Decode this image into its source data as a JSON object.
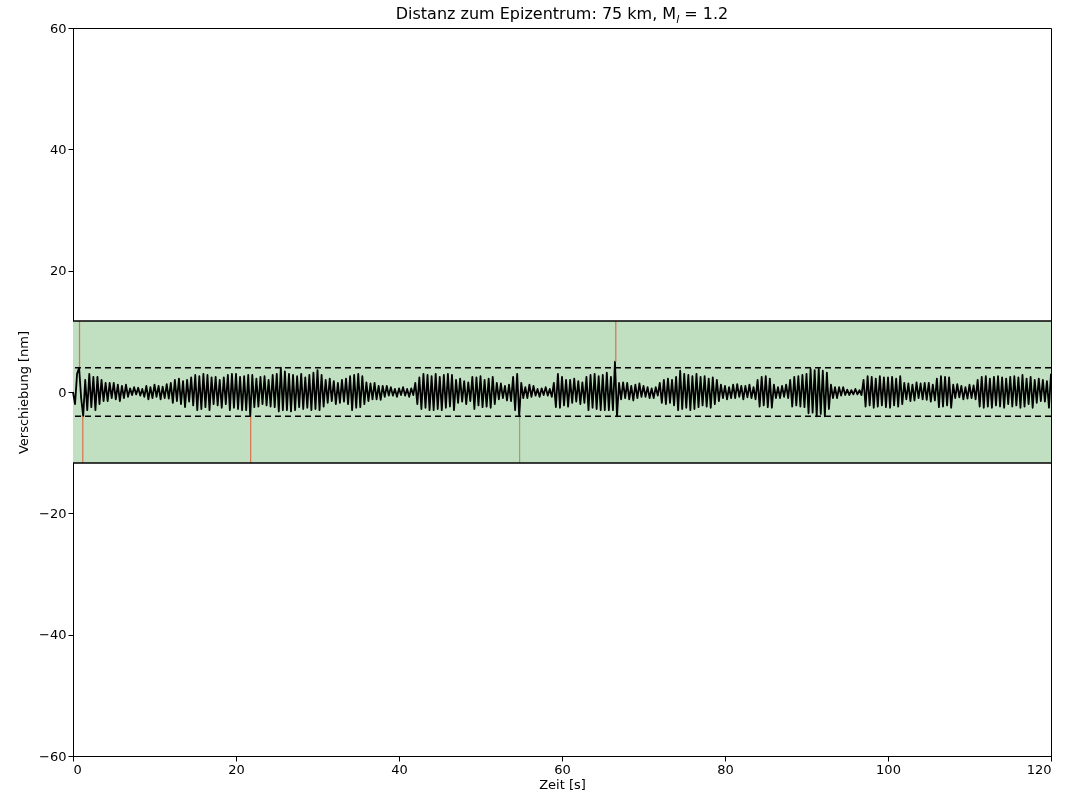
{
  "chart_data": {
    "type": "line",
    "title": "Distanz zum Epizentrum: 75 km, M$_{l}$ = 1.2",
    "xlabel": "Zeit [s]",
    "ylabel": "Verschiebung [nm]",
    "xlim": [
      0,
      120
    ],
    "xticks": [
      0,
      20,
      40,
      60,
      80,
      100,
      120
    ],
    "ylim": [
      -60,
      60
    ],
    "yticks": [
      -60,
      -40,
      -20,
      0,
      20,
      40,
      60
    ],
    "grid": false,
    "bands": [
      {
        "axis": "y",
        "from": -11.7,
        "to": 11.7,
        "color": "#c1dfc1"
      }
    ],
    "ref_lines": [
      {
        "axis": "y",
        "value": 11.7,
        "color": "#000000",
        "line_style": "solid"
      },
      {
        "axis": "y",
        "value": -11.7,
        "color": "#000000",
        "line_style": "solid"
      },
      {
        "axis": "y",
        "value": 4,
        "color": "#000000",
        "line_style": "dashed"
      },
      {
        "axis": "y",
        "value": -4,
        "color": "#000000",
        "line_style": "dashed"
      }
    ],
    "series": [
      {
        "color": "#000000",
        "x": [
          0,
          0.25,
          0.5,
          0.75,
          1,
          1.25,
          1.5,
          1.75,
          2,
          2.25,
          2.5,
          2.75,
          3,
          3.25,
          3.5,
          3.75,
          4,
          4.25,
          4.5,
          4.75,
          5,
          5.25,
          5.5,
          5.75,
          6,
          6.25,
          6.5,
          6.75,
          7,
          7.25,
          7.5,
          7.75,
          8,
          8.25,
          8.5,
          8.75,
          9,
          9.25,
          9.5,
          9.75,
          10,
          10.25,
          10.5,
          10.75,
          11,
          11.25,
          11.5,
          11.75,
          12,
          12.25,
          12.5,
          12.75,
          13,
          13.25,
          13.5,
          13.75,
          14,
          14.25,
          14.5,
          14.75,
          15,
          15.25,
          15.5,
          15.75,
          16,
          16.25,
          16.5,
          16.75,
          17,
          17.25,
          17.5,
          17.75,
          18,
          18.25,
          18.5,
          18.75,
          19,
          19.25,
          19.5,
          19.75,
          20,
          20.25,
          20.5,
          20.75,
          21,
          21.25,
          21.5,
          21.75,
          22,
          22.25,
          22.5,
          22.75,
          23,
          23.25,
          23.5,
          23.75,
          24,
          24.25,
          24.5,
          24.75,
          25,
          25.25,
          25.5,
          25.75,
          26,
          26.25,
          26.5,
          26.75,
          27,
          27.25,
          27.5,
          27.75,
          28,
          28.25,
          28.5,
          28.75,
          29,
          29.25,
          29.5,
          29.75,
          30,
          30.25,
          30.5,
          30.75,
          31,
          31.25,
          31.5,
          31.75,
          32,
          32.25,
          32.5,
          32.75,
          33,
          33.25,
          33.5,
          33.75,
          34,
          34.25,
          34.5,
          34.75,
          35,
          35.25,
          35.5,
          35.75,
          36,
          36.25,
          36.5,
          36.75,
          37,
          37.25,
          37.5,
          37.75,
          38,
          38.25,
          38.5,
          38.75,
          39,
          39.25,
          39.5,
          39.75,
          40,
          40.25,
          40.5,
          40.75,
          41,
          41.25,
          41.5,
          41.75,
          42,
          42.25,
          42.5,
          42.75,
          43,
          43.25,
          43.5,
          43.75,
          44,
          44.25,
          44.5,
          44.75,
          45,
          45.25,
          45.5,
          45.75,
          46,
          46.25,
          46.5,
          46.75,
          47,
          47.25,
          47.5,
          47.75,
          48,
          48.25,
          48.5,
          48.75,
          49,
          49.25,
          49.5,
          49.75,
          50,
          50.25,
          50.5,
          50.75,
          51,
          51.25,
          51.5,
          51.75,
          52,
          52.25,
          52.5,
          52.75,
          53,
          53.25,
          53.5,
          53.75,
          54,
          54.25,
          54.5,
          54.75,
          55,
          55.25,
          55.5,
          55.75,
          56,
          56.25,
          56.5,
          56.75,
          57,
          57.25,
          57.5,
          57.75,
          58,
          58.25,
          58.5,
          58.75,
          59,
          59.25,
          59.5,
          59.75,
          60,
          60.25,
          60.5,
          60.75,
          61,
          61.25,
          61.5,
          61.75,
          62,
          62.25,
          62.5,
          62.75,
          63,
          63.25,
          63.5,
          63.75,
          64,
          64.25,
          64.5,
          64.75,
          65,
          65.25,
          65.5,
          65.75,
          66,
          66.25,
          66.5,
          66.75,
          67,
          67.25,
          67.5,
          67.75,
          68,
          68.25,
          68.5,
          68.75,
          69,
          69.25,
          69.5,
          69.75,
          70,
          70.25,
          70.5,
          70.75,
          71,
          71.25,
          71.5,
          71.75,
          72,
          72.25,
          72.5,
          72.75,
          73,
          73.25,
          73.5,
          73.75,
          74,
          74.25,
          74.5,
          74.75,
          75,
          75.25,
          75.5,
          75.75,
          76,
          76.25,
          76.5,
          76.75,
          77,
          77.25,
          77.5,
          77.75,
          78,
          78.25,
          78.5,
          78.75,
          79,
          79.25,
          79.5,
          79.75,
          80,
          80.25,
          80.5,
          80.75,
          81,
          81.25,
          81.5,
          81.75,
          82,
          82.25,
          82.5,
          82.75,
          83,
          83.25,
          83.5,
          83.75,
          84,
          84.25,
          84.5,
          84.75,
          85,
          85.25,
          85.5,
          85.75,
          86,
          86.25,
          86.5,
          86.75,
          87,
          87.25,
          87.5,
          87.75,
          88,
          88.25,
          88.5,
          88.75,
          89,
          89.25,
          89.5,
          89.75,
          90,
          90.25,
          90.5,
          90.75,
          91,
          91.25,
          91.5,
          91.75,
          92,
          92.25,
          92.5,
          92.75,
          93,
          93.25,
          93.5,
          93.75,
          94,
          94.25,
          94.5,
          94.75,
          95,
          95.25,
          95.5,
          95.75,
          96,
          96.25,
          96.5,
          96.75,
          97,
          97.25,
          97.5,
          97.75,
          98,
          98.25,
          98.5,
          98.75,
          99,
          99.25,
          99.5,
          99.75,
          100,
          100.25,
          100.5,
          100.75,
          101,
          101.25,
          101.5,
          101.75,
          102,
          102.25,
          102.5,
          102.75,
          103,
          103.25,
          103.5,
          103.75,
          104,
          104.25,
          104.5,
          104.75,
          105,
          105.25,
          105.5,
          105.75,
          106,
          106.25,
          106.5,
          106.75,
          107,
          107.25,
          107.5,
          107.75,
          108,
          108.25,
          108.5,
          108.75,
          109,
          109.25,
          109.5,
          109.75,
          110,
          110.25,
          110.5,
          110.75,
          111,
          111.25,
          111.5,
          111.75,
          112,
          112.25,
          112.5,
          112.75,
          113,
          113.25,
          113.5,
          113.75,
          114,
          114.25,
          114.5,
          114.75,
          115,
          115.25,
          115.5,
          115.75,
          116,
          116.25,
          116.5,
          116.75,
          117,
          117.25,
          117.5,
          117.75,
          118,
          118.25,
          118.5,
          118.75,
          119,
          119.25,
          119.5,
          119.75,
          120
        ],
        "values": [
          0,
          -2,
          3,
          4,
          -1,
          -4,
          2,
          -3,
          3,
          -2.5,
          2.5,
          -3,
          2.5,
          -2,
          2,
          -1.5,
          1.5,
          -1.5,
          1.5,
          -1,
          1.5,
          -1.2,
          1.2,
          -1.5,
          1,
          -1,
          1.2,
          -0.8,
          0.6,
          -0.5,
          0.8,
          -0.4,
          0.7,
          -0.6,
          0.5,
          -0.8,
          1,
          -1.2,
          0.8,
          -1,
          1.2,
          -0.8,
          1,
          -1.2,
          0.9,
          -1,
          1.3,
          -1.1,
          1.5,
          -1.8,
          2,
          -1.5,
          2.2,
          -2,
          1.8,
          -2.5,
          2,
          -1.6,
          2.4,
          -2.2,
          2.8,
          -3,
          2.6,
          -2.8,
          3,
          -2.5,
          2.8,
          -3,
          2.4,
          -2,
          2.5,
          -2.2,
          2,
          -2.6,
          2.4,
          -2,
          2.8,
          -3,
          3,
          -2.6,
          3,
          -2.8,
          2.5,
          -3,
          2.6,
          -3,
          2.8,
          -4,
          2.8,
          -2.5,
          2.2,
          -2.4,
          2.5,
          -2,
          2.6,
          -2.2,
          2,
          -2.4,
          2.8,
          -2.5,
          3,
          -3.2,
          4,
          -3,
          3.4,
          -3,
          3,
          -3.2,
          2.8,
          -3,
          2.6,
          -2.5,
          3,
          -2.8,
          2.4,
          -2.6,
          2.8,
          -3,
          3.2,
          -2.8,
          3.6,
          -3,
          2.8,
          -2.4,
          2,
          -1.8,
          2.2,
          -1.5,
          1.8,
          -2,
          1.5,
          -1.8,
          2,
          -1.6,
          2.2,
          -2,
          2.6,
          -3,
          2.8,
          -2.6,
          3,
          -2.5,
          2.6,
          -2,
          1.6,
          -1.5,
          1.4,
          -1.2,
          1.5,
          -1.2,
          1,
          -1.3,
          1,
          -0.8,
          1,
          -0.6,
          0.8,
          -0.6,
          0.5,
          -0.8,
          0.6,
          -0.5,
          0.8,
          -0.6,
          0.5,
          -0.8,
          0.6,
          -0.5,
          1.5,
          -2,
          2.4,
          -2.8,
          3,
          -2.6,
          2.8,
          -3,
          2.6,
          -3,
          3,
          -2.8,
          2.5,
          -3,
          2.8,
          -2.6,
          3,
          -2.4,
          2.8,
          -3,
          2,
          -1.8,
          2.2,
          -1.6,
          1.8,
          -2,
          1.6,
          -1.5,
          2.5,
          -2.8,
          2.4,
          -2.2,
          2.6,
          -2.5,
          2,
          -2.4,
          2.2,
          -2.6,
          2.5,
          -2,
          1.5,
          -1.2,
          1.4,
          -1,
          1,
          -1.4,
          1.2,
          -1.5,
          2.5,
          -3,
          3,
          -4,
          1.5,
          -1,
          0.8,
          -1,
          1.2,
          -0.8,
          1,
          -0.6,
          0.5,
          -0.8,
          0.6,
          -0.5,
          0.8,
          -0.6,
          0.5,
          -0.8,
          1.5,
          -2.5,
          3,
          -2.6,
          2.5,
          -2.2,
          2,
          -2.4,
          2,
          -1.8,
          2.2,
          -1.6,
          1.8,
          -2,
          1.6,
          -1.8,
          2.5,
          -3,
          2.8,
          -2.6,
          3,
          -2.8,
          2.6,
          -3,
          2.8,
          -3,
          3.2,
          -3,
          2.5,
          -3,
          5,
          -4,
          1.5,
          -1.2,
          1.6,
          -1,
          1.5,
          -1.2,
          1,
          -1.4,
          1.2,
          -1,
          1.4,
          -0.8,
          1,
          -0.8,
          0.8,
          -1,
          0.6,
          -1,
          0.8,
          -0.6,
          1.5,
          -1.8,
          2,
          -2,
          2.2,
          -1.8,
          2,
          -2.2,
          2.5,
          -3,
          3.5,
          -2.8,
          3,
          -2.6,
          2.8,
          -3,
          2.6,
          -2.8,
          3,
          -2.5,
          2.5,
          -2.2,
          2.6,
          -2.4,
          2.2,
          -2.6,
          2.4,
          -2,
          2,
          -1.5,
          1.2,
          -1,
          1,
          -1.2,
          0.8,
          -1,
          1.2,
          -1,
          1.3,
          -0.8,
          1,
          -1.2,
          1,
          -0.9,
          1.2,
          -1,
          0.8,
          -1.2,
          2,
          -2.4,
          2.5,
          -2.2,
          2.6,
          -2.5,
          2.2,
          -2.6,
          1.2,
          -1,
          0.8,
          -1,
          1,
          -0.8,
          1.2,
          -1,
          2,
          -2.4,
          2.5,
          -2.2,
          2.6,
          -2.4,
          2.8,
          -2.5,
          3,
          -3.5,
          3.8,
          -3.4,
          3.6,
          -4,
          3.8,
          -3.6,
          3.5,
          -4,
          3.2,
          -2.8,
          1.2,
          -1,
          0.8,
          -1,
          0.8,
          -0.6,
          0.8,
          -0.5,
          0.4,
          -0.5,
          0.3,
          -0.4,
          0.5,
          -0.4,
          0.3,
          -0.5,
          2,
          -2.4,
          2.6,
          -2.2,
          2.5,
          -2.6,
          2.2,
          -2.4,
          2.6,
          -2.2,
          2.4,
          -2.5,
          2.4,
          -2.6,
          2.5,
          -2.2,
          2.2,
          -2.4,
          2.6,
          -2,
          1.5,
          -1.2,
          1.4,
          -1.5,
          1.2,
          -1.4,
          1.6,
          -1,
          1.4,
          -1.2,
          1.5,
          -1.3,
          1.5,
          -1.6,
          1.2,
          -1.4,
          2.2,
          -2.5,
          2.6,
          -2.4,
          2.5,
          -2.2,
          2.4,
          -2.6,
          1.2,
          -1,
          1.3,
          -0.9,
          1,
          -1.2,
          0.8,
          -1.1,
          1.2,
          -1,
          1.1,
          -1.2,
          2,
          -2.4,
          2.5,
          -2.6,
          2.6,
          -2.4,
          2.2,
          -2.6,
          2.5,
          -2.2,
          2.6,
          -2.4,
          2.4,
          -2.6,
          2.2,
          -2,
          2.5,
          -2.4,
          2.6,
          -2.2,
          2.4,
          -2.6,
          2.8,
          -2.4,
          2.2,
          -2,
          2.5,
          -2.6,
          2,
          -1.8,
          2.2,
          -1.5,
          2,
          -1.6,
          1.8,
          -2.6,
          3
        ]
      },
      {
        "color": "#d9734e",
        "x": [
          0.8,
          0.8
        ],
        "values": [
          4,
          11.7
        ]
      },
      {
        "color": "#d9734e",
        "x": [
          1.2,
          1.2
        ],
        "values": [
          -4,
          -11.7
        ]
      },
      {
        "color": "#d9734e",
        "x": [
          21.8,
          21.8
        ],
        "values": [
          -4,
          -11.7
        ]
      },
      {
        "color": "#9fa06a",
        "x": [
          54.8,
          54.8
        ],
        "values": [
          -4,
          -11.7
        ]
      },
      {
        "color": "#d9734e",
        "x": [
          66.6,
          66.6
        ],
        "values": [
          5,
          11.7
        ]
      }
    ]
  }
}
